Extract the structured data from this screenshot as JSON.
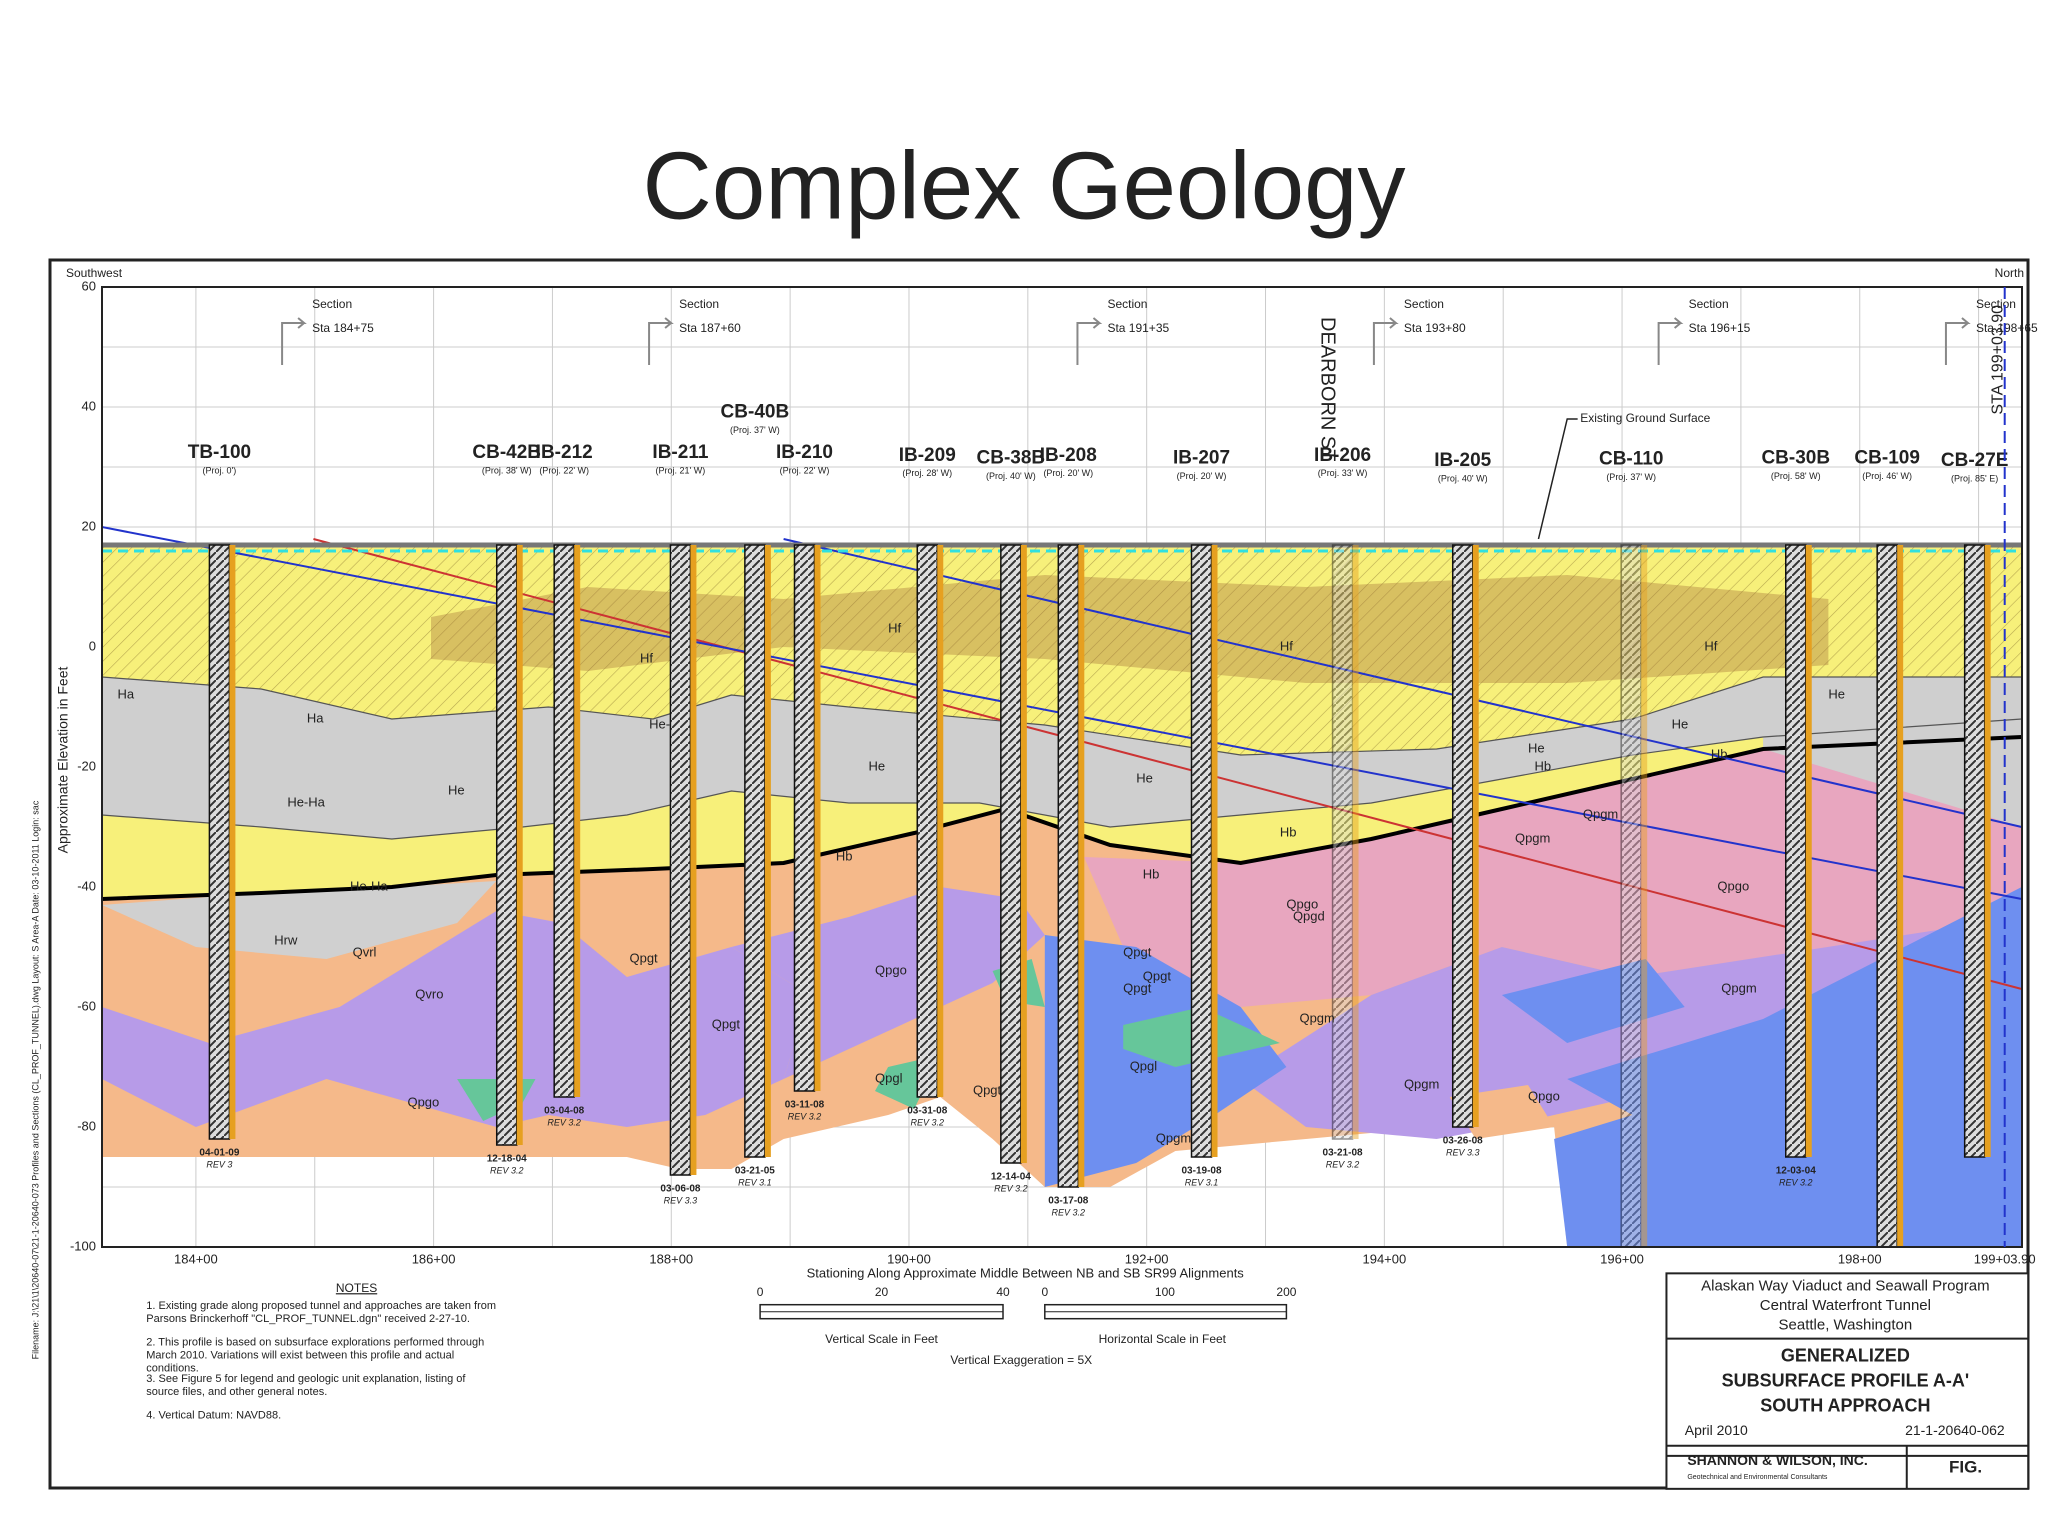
{
  "header": {
    "title": "Complex Geology"
  },
  "profile": {
    "corner_left": "Southwest",
    "corner_right": "North",
    "y_axis_label": "Approximate Elevation in Feet",
    "x_axis_label": "Stationing Along Approximate Middle Between NB and SB SR99 Alignments",
    "elevation_ticks": [
      "60",
      "40",
      "20",
      "0",
      "-20",
      "-40",
      "-60",
      "-80",
      "-100"
    ],
    "station_ticks": [
      "184+00",
      "186+00",
      "188+00",
      "190+00",
      "192+00",
      "194+00",
      "196+00",
      "198+00",
      "199+03.90"
    ],
    "sections": [
      {
        "label": "Section",
        "station": "Sta 184+75"
      },
      {
        "label": "Section",
        "station": "Sta 187+60"
      },
      {
        "label": "Section",
        "station": "Sta 191+35"
      },
      {
        "label": "Section",
        "station": "Sta 193+80"
      },
      {
        "label": "Section",
        "station": "Sta 196+15"
      },
      {
        "label": "Section",
        "station": "Sta 198+65"
      }
    ],
    "street": "DEARBORN ST",
    "end_station": "STA 199+03.90",
    "ground_label": "Existing Ground Surface",
    "boreholes": [
      {
        "name": "TB-100",
        "proj": "(Proj. 0')",
        "date": "04-01-09",
        "rev": "REV 3"
      },
      {
        "name": "CB-42B",
        "proj": "(Proj. 38' W)",
        "date": "12-18-04",
        "rev": "REV 3.2"
      },
      {
        "name": "IB-212",
        "proj": "(Proj. 22' W)",
        "date": "03-04-08",
        "rev": "REV 3.2"
      },
      {
        "name": "IB-211",
        "proj": "(Proj. 21' W)",
        "date": "03-06-08",
        "rev": "REV 3.3"
      },
      {
        "name": "CB-40B",
        "proj": "(Proj. 37' W)",
        "date": "03-21-05",
        "rev": "REV 3.1"
      },
      {
        "name": "IB-210",
        "proj": "(Proj. 22' W)",
        "date": "03-11-08",
        "rev": "REV 3.2"
      },
      {
        "name": "IB-209",
        "proj": "(Proj. 28' W)",
        "date": "03-31-08",
        "rev": "REV 3.2"
      },
      {
        "name": "CB-38B",
        "proj": "(Proj. 40' W)",
        "date": "12-14-04",
        "rev": "REV 3.2"
      },
      {
        "name": "IB-208",
        "proj": "(Proj. 20' W)",
        "date": "03-17-08",
        "rev": "REV 3.2"
      },
      {
        "name": "IB-207",
        "proj": "(Proj. 20' W)",
        "date": "03-19-08",
        "rev": "REV 3.1"
      },
      {
        "name": "IB-206",
        "proj": "(Proj. 33' W)",
        "date": "03-21-08",
        "rev": "REV 3.2"
      },
      {
        "name": "IB-205",
        "proj": "(Proj. 40' W)",
        "date": "03-26-08",
        "rev": "REV 3.3"
      },
      {
        "name": "CB-110",
        "proj": "(Proj. 37' W)",
        "date": "",
        "rev": ""
      },
      {
        "name": "CB-30B",
        "proj": "(Proj. 58' W)",
        "date": "12-03-04",
        "rev": "REV 3.2"
      },
      {
        "name": "CB-109",
        "proj": "(Proj. 46' W)",
        "date": "",
        "rev": ""
      },
      {
        "name": "CB-27E",
        "proj": "(Proj. 85' E)",
        "date": "",
        "rev": ""
      }
    ],
    "units": [
      "Hf",
      "Hf",
      "Hf",
      "Hf",
      "Ha",
      "Ha",
      "He",
      "He-Ha",
      "He",
      "He-Ha",
      "He",
      "He",
      "He",
      "He",
      "He-Ha",
      "Hb",
      "Hb",
      "Hb",
      "Hb",
      "Hb",
      "Hrw",
      "Qvrl",
      "Qvro",
      "Qpgt",
      "Qpgo",
      "Qpgt",
      "Qpgo",
      "Qpgl",
      "Qpgt",
      "Qpgt",
      "Qpgo",
      "Qpgm",
      "Qpgm",
      "Qpgl",
      "Qpgd",
      "Qpgt",
      "Qpgm",
      "Qpgm",
      "Qpgo",
      "Qpgt",
      "Qpgo",
      "Qpgm",
      "Qpgm"
    ]
  },
  "notes": {
    "title": "NOTES",
    "items": [
      "1.  Existing grade along proposed tunnel and approaches are taken from Parsons Brinckerhoff \"CL_PROF_TUNNEL.dgn\" received 2-27-10.",
      "2.  This profile is based on subsurface explorations performed through March 2010.  Variations will exist between this profile and actual conditions.",
      "3.  See Figure 5 for legend and geologic unit explanation, listing of source files, and other general notes.",
      "4.  Vertical Datum: NAVD88."
    ]
  },
  "scales": {
    "vertical": [
      "0",
      "20",
      "40"
    ],
    "vertical_label": "Vertical Scale in Feet",
    "horizontal": [
      "0",
      "100",
      "200"
    ],
    "horizontal_label": "Horizontal Scale in Feet",
    "exaggeration": "Vertical Exaggeration = 5X"
  },
  "title_block": {
    "project": [
      "Alaskan Way Viaduct and Seawall Program",
      "Central Waterfront Tunnel",
      "Seattle, Washington"
    ],
    "drawing": [
      "GENERALIZED",
      "SUBSURFACE PROFILE A-A'",
      "SOUTH APPROACH"
    ],
    "date": "April 2010",
    "job": "21-1-20640-062",
    "firm": "SHANNON & WILSON, INC.",
    "firm_sub": "Geotechnical and Environmental Consultants",
    "fig": "FIG."
  },
  "filename": "Filename: J:\\21\\1\\20640-07\\21-1-20640-073 Profiles and Sections (CL_PROF_TUNNEL).dwg     Layout: S Area-A     Date: 03-10-2011     Login: sac"
}
